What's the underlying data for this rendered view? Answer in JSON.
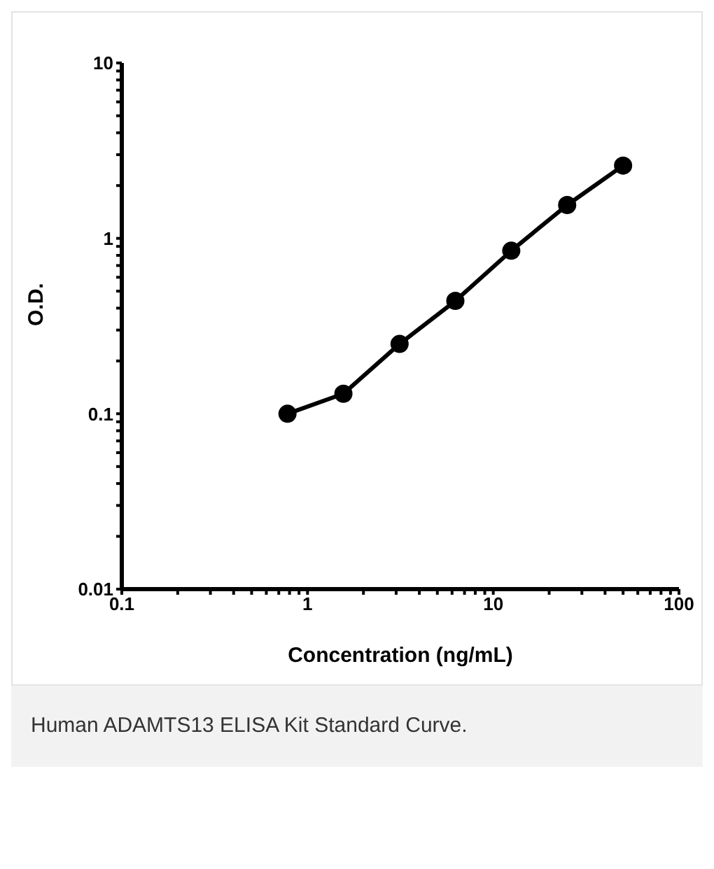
{
  "chart_data": {
    "type": "line",
    "xlabel": "Concentration (ng/mL)",
    "ylabel": "O.D.",
    "log": "xy",
    "marker": "circle",
    "line_style": "solid",
    "grid": false,
    "legend": false,
    "x": [
      0.78,
      1.56,
      3.13,
      6.25,
      12.5,
      25,
      50
    ],
    "series": [
      {
        "color": "#000000",
        "values": [
          0.1,
          0.13,
          0.25,
          0.44,
          0.85,
          1.55,
          2.6
        ]
      }
    ],
    "xlim": [
      0.1,
      100
    ],
    "xticks": [
      0.1,
      {
        "value": 0.2,
        "label": null
      },
      {
        "value": 0.3,
        "label": null
      },
      {
        "value": 0.4,
        "label": null
      },
      {
        "value": 0.5,
        "label": null
      },
      {
        "value": 0.6,
        "label": null
      },
      {
        "value": 0.7,
        "label": null
      },
      {
        "value": 0.8,
        "label": null
      },
      {
        "value": 0.9,
        "label": null
      },
      1,
      {
        "value": 2,
        "label": null
      },
      {
        "value": 3,
        "label": null
      },
      {
        "value": 4,
        "label": null
      },
      {
        "value": 5,
        "label": null
      },
      {
        "value": 6,
        "label": null
      },
      {
        "value": 7,
        "label": null
      },
      {
        "value": 8,
        "label": null
      },
      {
        "value": 9,
        "label": null
      },
      10,
      {
        "value": 20,
        "label": null
      },
      {
        "value": 30,
        "label": null
      },
      {
        "value": 40,
        "label": null
      },
      {
        "value": 50,
        "label": null
      },
      {
        "value": 60,
        "label": null
      },
      {
        "value": 70,
        "label": null
      },
      {
        "value": 80,
        "label": null
      },
      {
        "value": 90,
        "label": null
      },
      100
    ],
    "ylim": [
      0.01,
      10
    ],
    "yticks": [
      0.01,
      {
        "value": 0.02,
        "label": null
      },
      {
        "value": 0.03,
        "label": null
      },
      {
        "value": 0.04,
        "label": null
      },
      {
        "value": 0.05,
        "label": null
      },
      {
        "value": 0.06,
        "label": null
      },
      {
        "value": 0.07,
        "label": null
      },
      {
        "value": 0.08,
        "label": null
      },
      {
        "value": 0.09,
        "label": null
      },
      0.1,
      {
        "value": 0.2,
        "label": null
      },
      {
        "value": 0.3,
        "label": null
      },
      {
        "value": 0.4,
        "label": null
      },
      {
        "value": 0.5,
        "label": null
      },
      {
        "value": 0.6,
        "label": null
      },
      {
        "value": 0.7,
        "label": null
      },
      {
        "value": 0.8,
        "label": null
      },
      {
        "value": 0.9,
        "label": null
      },
      1,
      {
        "value": 2,
        "label": null
      },
      {
        "value": 3,
        "label": null
      },
      {
        "value": 4,
        "label": null
      },
      {
        "value": 5,
        "label": null
      },
      {
        "value": 6,
        "label": null
      },
      {
        "value": 7,
        "label": null
      },
      {
        "value": 8,
        "label": null
      },
      {
        "value": 9,
        "label": null
      },
      10
    ],
    "annotations": [
      "Human ADAMTS13 ELISA Kit Standard Curve."
    ]
  }
}
